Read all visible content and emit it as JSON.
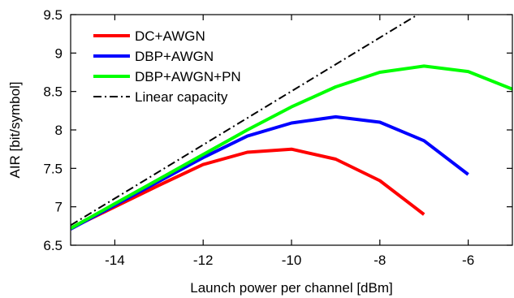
{
  "chart_data": {
    "type": "line",
    "xlabel": "Launch power per channel [dBm]",
    "ylabel": "AIR [bit/symbol]",
    "xlim": [
      -15,
      -5
    ],
    "ylim": [
      6.5,
      9.5
    ],
    "xticks": [
      -14,
      -12,
      -10,
      -8,
      -6
    ],
    "yticks": [
      6.5,
      7,
      7.5,
      8,
      8.5,
      9,
      9.5
    ],
    "grid": false,
    "legend_position": "top-left",
    "series": [
      {
        "name": "DC+AWGN",
        "color": "#ff0000",
        "style": "solid",
        "x": [
          -15,
          -14,
          -13,
          -12,
          -11,
          -10,
          -9,
          -8,
          -7
        ],
        "y": [
          6.72,
          7.0,
          7.28,
          7.55,
          7.71,
          7.75,
          7.62,
          7.34,
          6.9
        ]
      },
      {
        "name": "DBP+AWGN",
        "color": "#0000ff",
        "style": "solid",
        "x": [
          -15,
          -14,
          -13,
          -12,
          -11,
          -10,
          -9,
          -8,
          -7,
          -6
        ],
        "y": [
          6.71,
          7.02,
          7.33,
          7.64,
          7.92,
          8.09,
          8.17,
          8.1,
          7.86,
          7.42
        ]
      },
      {
        "name": "DBP+AWGN+PN",
        "color": "#00ff00",
        "style": "solid",
        "x": [
          -15,
          -14,
          -13,
          -12,
          -11,
          -10,
          -9,
          -8,
          -7,
          -6,
          -5
        ],
        "y": [
          6.72,
          7.04,
          7.36,
          7.68,
          8.0,
          8.3,
          8.56,
          8.75,
          8.83,
          8.76,
          8.53
        ]
      },
      {
        "name": "Linear capacity",
        "color": "#000000",
        "style": "dashdot",
        "x": [
          -15,
          -7
        ],
        "y": [
          6.76,
          9.55
        ]
      }
    ]
  }
}
